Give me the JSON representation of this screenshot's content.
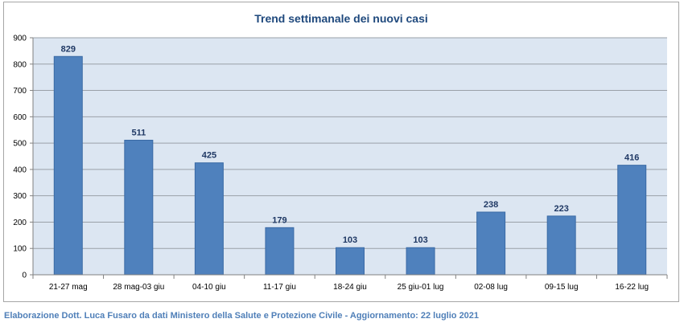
{
  "chart_data": {
    "type": "bar",
    "title": "Trend settimanale dei nuovi casi",
    "categories": [
      "21-27 mag",
      "28 mag-03 giu",
      "04-10 giu",
      "11-17 giu",
      "18-24 giu",
      "25 giu-01 lug",
      "02-08 lug",
      "09-15 lug",
      "16-22 lug"
    ],
    "values": [
      829,
      511,
      425,
      179,
      103,
      103,
      238,
      223,
      416
    ],
    "ylim": [
      0,
      900
    ],
    "yticks": [
      0,
      100,
      200,
      300,
      400,
      500,
      600,
      700,
      800,
      900
    ],
    "grid": true,
    "data_labels": true
  },
  "colors": {
    "bar": "#4f81bd",
    "bar_edge": "#3a6aa5",
    "plot_bg": "#dce6f2",
    "title": "#1f497d",
    "data_label": "#1f3864",
    "credit": "#4f7fb8"
  },
  "footer": {
    "credit": "Elaborazione Dott. Luca Fusaro da dati Ministero della Salute e Protezione Civile - Aggiornamento: 22 luglio 2021"
  }
}
